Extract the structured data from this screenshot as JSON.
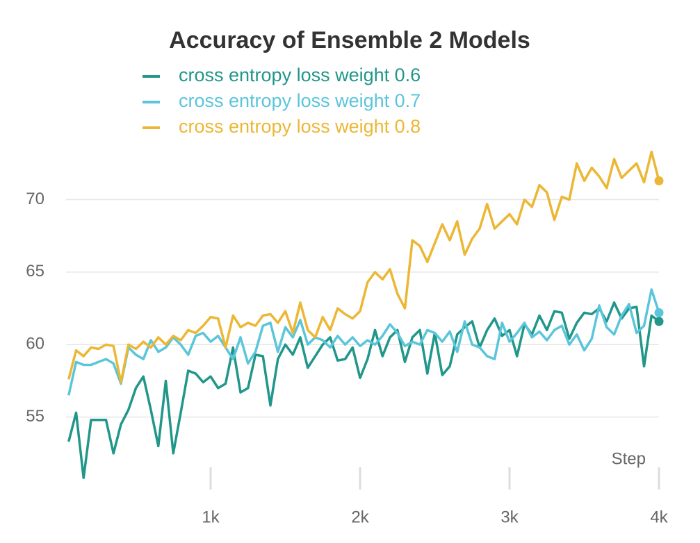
{
  "chart_data": {
    "type": "line",
    "title": "Accuracy of Ensemble 2 Models",
    "x_label": "Step",
    "x": [
      50,
      100,
      150,
      200,
      250,
      300,
      350,
      400,
      450,
      500,
      550,
      600,
      650,
      700,
      750,
      800,
      850,
      900,
      950,
      1000,
      1050,
      1100,
      1150,
      1200,
      1250,
      1300,
      1350,
      1400,
      1450,
      1500,
      1550,
      1600,
      1650,
      1700,
      1750,
      1800,
      1850,
      1900,
      1950,
      2000,
      2050,
      2100,
      2150,
      2200,
      2250,
      2300,
      2350,
      2400,
      2450,
      2500,
      2550,
      2600,
      2650,
      2700,
      2750,
      2800,
      2850,
      2900,
      2950,
      3000,
      3050,
      3100,
      3150,
      3200,
      3250,
      3300,
      3350,
      3400,
      3450,
      3500,
      3550,
      3600,
      3650,
      3700,
      3750,
      3800,
      3850,
      3900,
      3950,
      4000
    ],
    "series": [
      {
        "name": "cross entropy loss weight 0.6",
        "color": "#21968a",
        "values": [
          53.3,
          55.3,
          50.8,
          54.8,
          54.8,
          54.8,
          52.5,
          54.5,
          55.5,
          57.0,
          57.8,
          55.5,
          53.0,
          57.5,
          52.5,
          55.3,
          58.2,
          58.0,
          57.4,
          57.8,
          57.0,
          57.3,
          59.8,
          56.7,
          57.0,
          59.3,
          59.2,
          55.8,
          59.0,
          60.0,
          59.3,
          60.5,
          58.4,
          59.2,
          60.0,
          60.5,
          58.9,
          59.0,
          59.8,
          57.7,
          59.0,
          61.0,
          59.2,
          60.5,
          61.0,
          58.8,
          60.5,
          61.0,
          58.0,
          60.8,
          57.9,
          58.5,
          60.7,
          61.2,
          61.6,
          59.8,
          61.0,
          61.8,
          60.6,
          61.0,
          59.2,
          61.4,
          60.7,
          62.0,
          61.0,
          62.3,
          62.2,
          60.4,
          61.5,
          62.2,
          62.1,
          62.5,
          61.6,
          62.9,
          61.8,
          62.5,
          62.6,
          58.5,
          62.0,
          61.6
        ]
      },
      {
        "name": "cross entropy loss weight 0.7",
        "color": "#5bc5db",
        "values": [
          56.5,
          58.8,
          58.6,
          58.6,
          58.8,
          59.0,
          58.7,
          57.3,
          59.8,
          59.3,
          59.0,
          60.3,
          59.5,
          59.8,
          60.5,
          60.0,
          59.3,
          60.6,
          60.8,
          60.2,
          60.6,
          59.8,
          59.0,
          60.5,
          58.7,
          59.5,
          61.3,
          61.5,
          59.5,
          61.2,
          60.5,
          61.7,
          60.0,
          60.5,
          60.3,
          59.8,
          60.6,
          60.0,
          60.5,
          59.9,
          60.3,
          60.0,
          60.6,
          61.4,
          60.8,
          59.9,
          60.2,
          60.0,
          61.0,
          60.8,
          60.2,
          60.9,
          59.5,
          61.6,
          60.0,
          59.8,
          59.2,
          59.0,
          61.5,
          60.2,
          60.8,
          61.5,
          60.5,
          60.9,
          60.3,
          61.0,
          61.3,
          60.0,
          60.7,
          59.6,
          60.4,
          62.7,
          61.2,
          60.7,
          62.0,
          62.8,
          60.8,
          61.3,
          63.8,
          62.2
        ]
      },
      {
        "name": "cross entropy loss weight 0.8",
        "color": "#ebb734",
        "values": [
          57.6,
          59.6,
          59.2,
          59.8,
          59.7,
          60.0,
          59.9,
          57.4,
          60.0,
          59.7,
          60.2,
          59.8,
          60.5,
          60.0,
          60.6,
          60.3,
          61.0,
          60.8,
          61.3,
          61.9,
          61.8,
          59.8,
          62.0,
          61.2,
          61.5,
          61.3,
          62.0,
          62.1,
          61.5,
          62.3,
          60.8,
          62.9,
          61.0,
          60.5,
          61.9,
          61.0,
          62.5,
          62.1,
          61.8,
          62.3,
          64.3,
          65.0,
          64.5,
          65.2,
          63.5,
          62.5,
          67.2,
          66.8,
          65.7,
          67.0,
          68.3,
          67.2,
          68.5,
          66.2,
          67.3,
          68.0,
          69.7,
          68.0,
          68.5,
          69.0,
          68.3,
          70.0,
          69.5,
          71.0,
          70.5,
          68.6,
          70.2,
          70.0,
          72.5,
          71.3,
          72.2,
          71.6,
          70.8,
          72.8,
          71.5,
          72.0,
          72.5,
          71.2,
          73.3,
          71.3
        ]
      }
    ],
    "xlim": [
      0,
      4000
    ],
    "xticks": [
      {
        "value": 1000,
        "label": "1k"
      },
      {
        "value": 2000,
        "label": "2k"
      },
      {
        "value": 3000,
        "label": "3k"
      },
      {
        "value": 4000,
        "label": "4k"
      }
    ],
    "ylim": [
      50,
      74
    ],
    "yticks": [
      55,
      60,
      65,
      70
    ],
    "grid": true
  }
}
